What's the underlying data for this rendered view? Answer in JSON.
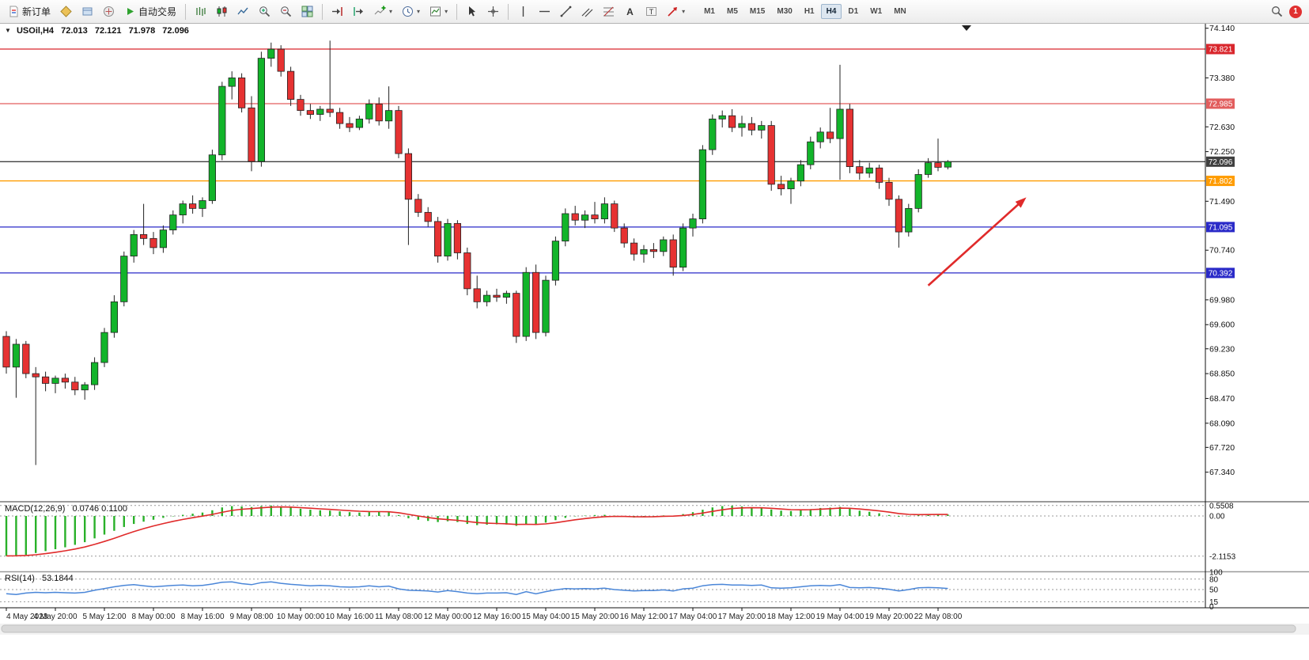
{
  "toolbar": {
    "new_order_label": "新订单",
    "auto_trading_label": "自动交易",
    "timeframes": [
      "M1",
      "M5",
      "M15",
      "M30",
      "H1",
      "H4",
      "D1",
      "W1",
      "MN"
    ],
    "active_timeframe": "H4",
    "notification_count": "1"
  },
  "chart": {
    "symbol_period": "USOil,H4",
    "open": "72.013",
    "high": "72.121",
    "low": "71.978",
    "close": "72.096"
  },
  "indicators": {
    "macd": {
      "name": "MACD(12,26,9)",
      "values": "0.0746 0.1100"
    },
    "rsi": {
      "name": "RSI(14)",
      "value": "53.1844"
    }
  },
  "chart_data": [
    {
      "type": "candlestick",
      "symbol": "USOil",
      "timeframe": "H4",
      "last_ohlc": {
        "open": 72.013,
        "high": 72.121,
        "low": 71.978,
        "close": 72.096
      },
      "ylim": [
        67.34,
        74.14
      ],
      "price_ticks": [
        "74.140",
        "73.380",
        "72.630",
        "72.250",
        "71.490",
        "70.740",
        "69.980",
        "69.600",
        "69.230",
        "68.850",
        "68.470",
        "68.090",
        "67.720",
        "67.340"
      ],
      "x_labels": [
        "4 May 2023",
        "4 May 20:00",
        "5 May 12:00",
        "8 May 00:00",
        "8 May 16:00",
        "9 May 08:00",
        "10 May 00:00",
        "10 May 16:00",
        "11 May 08:00",
        "12 May 00:00",
        "12 May 16:00",
        "15 May 04:00",
        "15 May 20:00",
        "16 May 12:00",
        "17 May 04:00",
        "17 May 20:00",
        "18 May 12:00",
        "19 May 04:00",
        "19 May 20:00",
        "22 May 08:00"
      ],
      "bars_per_x_label": 5,
      "up_color": "#12b42a",
      "down_color": "#e63232",
      "candles": [
        [
          69.42,
          69.5,
          68.85,
          68.95
        ],
        [
          68.95,
          69.38,
          68.48,
          69.3
        ],
        [
          69.3,
          69.35,
          68.78,
          68.85
        ],
        [
          68.85,
          68.95,
          67.45,
          68.8
        ],
        [
          68.8,
          68.88,
          68.58,
          68.7
        ],
        [
          68.7,
          68.82,
          68.55,
          68.78
        ],
        [
          68.78,
          68.85,
          68.62,
          68.72
        ],
        [
          68.72,
          68.8,
          68.52,
          68.6
        ],
        [
          68.6,
          68.72,
          68.45,
          68.68
        ],
        [
          68.68,
          69.1,
          68.6,
          69.02
        ],
        [
          69.02,
          69.55,
          68.95,
          69.48
        ],
        [
          69.48,
          70.05,
          69.4,
          69.95
        ],
        [
          69.95,
          70.72,
          69.88,
          70.65
        ],
        [
          70.65,
          71.05,
          70.55,
          70.98
        ],
        [
          70.98,
          71.45,
          70.82,
          70.92
        ],
        [
          70.92,
          71.02,
          70.68,
          70.78
        ],
        [
          70.78,
          71.12,
          70.7,
          71.05
        ],
        [
          71.05,
          71.35,
          70.98,
          71.28
        ],
        [
          71.28,
          71.5,
          71.15,
          71.45
        ],
        [
          71.45,
          71.58,
          71.3,
          71.38
        ],
        [
          71.38,
          71.55,
          71.25,
          71.5
        ],
        [
          71.5,
          72.28,
          71.45,
          72.2
        ],
        [
          72.2,
          73.32,
          72.12,
          73.25
        ],
        [
          73.25,
          73.48,
          73.05,
          73.38
        ],
        [
          73.38,
          73.45,
          72.85,
          72.92
        ],
        [
          72.92,
          73.1,
          71.95,
          72.1
        ],
        [
          72.1,
          73.78,
          72.02,
          73.68
        ],
        [
          73.68,
          73.92,
          73.55,
          73.82
        ],
        [
          73.82,
          73.88,
          73.4,
          73.48
        ],
        [
          73.48,
          73.55,
          72.95,
          73.05
        ],
        [
          73.05,
          73.12,
          72.8,
          72.88
        ],
        [
          72.88,
          72.98,
          72.75,
          72.82
        ],
        [
          72.82,
          72.95,
          72.72,
          72.9
        ],
        [
          72.9,
          73.95,
          72.78,
          72.85
        ],
        [
          72.85,
          72.92,
          72.6,
          72.68
        ],
        [
          72.68,
          72.78,
          72.55,
          72.62
        ],
        [
          72.62,
          72.8,
          72.58,
          72.75
        ],
        [
          72.75,
          73.05,
          72.68,
          72.98
        ],
        [
          72.98,
          73.08,
          72.65,
          72.72
        ],
        [
          72.72,
          73.25,
          72.6,
          72.88
        ],
        [
          72.88,
          72.95,
          72.15,
          72.22
        ],
        [
          72.22,
          72.3,
          70.82,
          71.52
        ],
        [
          71.52,
          71.6,
          71.25,
          71.32
        ],
        [
          71.32,
          71.4,
          71.1,
          71.18
        ],
        [
          71.18,
          71.25,
          70.55,
          70.65
        ],
        [
          70.65,
          71.22,
          70.58,
          71.15
        ],
        [
          71.15,
          71.2,
          70.6,
          70.7
        ],
        [
          70.7,
          70.78,
          70.05,
          70.15
        ],
        [
          70.15,
          70.35,
          69.85,
          69.95
        ],
        [
          69.95,
          70.12,
          69.88,
          70.05
        ],
        [
          70.05,
          70.15,
          69.95,
          70.02
        ],
        [
          70.02,
          70.12,
          69.92,
          70.08
        ],
        [
          70.08,
          70.12,
          69.32,
          69.42
        ],
        [
          69.42,
          70.48,
          69.35,
          70.4
        ],
        [
          70.4,
          70.52,
          69.38,
          69.48
        ],
        [
          69.48,
          70.35,
          69.42,
          70.28
        ],
        [
          70.28,
          70.95,
          70.2,
          70.88
        ],
        [
          70.88,
          71.38,
          70.8,
          71.3
        ],
        [
          71.3,
          71.42,
          71.12,
          71.2
        ],
        [
          71.2,
          71.35,
          71.08,
          71.28
        ],
        [
          71.28,
          71.48,
          71.15,
          71.22
        ],
        [
          71.22,
          71.55,
          71.15,
          71.45
        ],
        [
          71.45,
          71.5,
          71.02,
          71.08
        ],
        [
          71.08,
          71.15,
          70.78,
          70.85
        ],
        [
          70.85,
          70.92,
          70.58,
          70.68
        ],
        [
          70.68,
          70.82,
          70.55,
          70.75
        ],
        [
          70.75,
          70.85,
          70.62,
          70.72
        ],
        [
          70.72,
          70.95,
          70.65,
          70.9
        ],
        [
          70.9,
          70.98,
          70.35,
          70.48
        ],
        [
          70.48,
          71.15,
          70.42,
          71.08
        ],
        [
          71.08,
          71.3,
          70.95,
          71.22
        ],
        [
          71.22,
          72.35,
          71.15,
          72.28
        ],
        [
          72.28,
          72.82,
          72.2,
          72.75
        ],
        [
          72.75,
          72.88,
          72.62,
          72.8
        ],
        [
          72.8,
          72.9,
          72.55,
          72.62
        ],
        [
          72.62,
          72.8,
          72.48,
          72.68
        ],
        [
          72.68,
          72.78,
          72.5,
          72.58
        ],
        [
          72.58,
          72.72,
          72.45,
          72.65
        ],
        [
          72.65,
          72.72,
          71.65,
          71.75
        ],
        [
          71.75,
          71.88,
          71.58,
          71.68
        ],
        [
          71.68,
          71.85,
          71.45,
          71.8
        ],
        [
          71.8,
          72.12,
          71.72,
          72.05
        ],
        [
          72.05,
          72.48,
          71.98,
          72.4
        ],
        [
          72.4,
          72.62,
          72.3,
          72.55
        ],
        [
          72.55,
          72.92,
          72.38,
          72.45
        ],
        [
          72.45,
          73.58,
          71.82,
          72.9
        ],
        [
          72.9,
          72.98,
          71.92,
          72.02
        ],
        [
          72.02,
          72.12,
          71.82,
          71.92
        ],
        [
          71.92,
          72.08,
          71.85,
          72.0
        ],
        [
          72.0,
          72.05,
          71.68,
          71.78
        ],
        [
          71.78,
          71.85,
          71.42,
          71.52
        ],
        [
          71.52,
          71.58,
          70.78,
          71.02
        ],
        [
          71.02,
          71.45,
          70.95,
          71.38
        ],
        [
          71.38,
          71.98,
          71.32,
          71.9
        ],
        [
          71.9,
          72.15,
          71.85,
          72.08
        ],
        [
          72.08,
          72.45,
          71.95,
          72.01
        ],
        [
          72.013,
          72.121,
          71.978,
          72.096
        ]
      ],
      "levels": [
        {
          "price": 73.821,
          "label": "73.821",
          "color": "#d9262c"
        },
        {
          "price": 72.985,
          "label": "72.985",
          "color": "#e25d5d"
        },
        {
          "price": 72.096,
          "label": "72.096",
          "color": "#404040"
        },
        {
          "price": 71.802,
          "label": "71.802",
          "color": "#ff9c00"
        },
        {
          "price": 71.095,
          "label": "71.095",
          "color": "#2a2ac8"
        },
        {
          "price": 70.392,
          "label": "70.392",
          "color": "#2a2ac8"
        }
      ],
      "annotations": [
        {
          "type": "arrow",
          "color": "#e02a2a",
          "from": {
            "bar": 94,
            "price": 70.2
          },
          "to": {
            "bar": 104,
            "price": 71.55
          },
          "note": "upward trend arrow"
        }
      ]
    },
    {
      "type": "bar",
      "name": "MACD(12,26,9)",
      "current_values": {
        "macd": 0.0746,
        "signal": 0.11
      },
      "ylim": [
        -2.1153,
        0.5508
      ],
      "axis_ticks": [
        "0.5508",
        "0.00",
        "-2.1153"
      ],
      "colors": {
        "histogram": "#29b129",
        "signal": "#e02a2a"
      },
      "signal_line": "smoothed (EMA) of histogram, drawn in red",
      "histogram": [
        -2.1,
        -2.08,
        -2.05,
        -1.95,
        -1.85,
        -1.75,
        -1.65,
        -1.52,
        -1.38,
        -1.18,
        -0.98,
        -0.78,
        -0.58,
        -0.42,
        -0.3,
        -0.2,
        -0.1,
        -0.02,
        0.06,
        0.12,
        0.18,
        0.3,
        0.45,
        0.52,
        0.5,
        0.47,
        0.52,
        0.55,
        0.5,
        0.44,
        0.38,
        0.33,
        0.3,
        0.28,
        0.24,
        0.2,
        0.18,
        0.2,
        0.22,
        0.2,
        0.05,
        -0.12,
        -0.2,
        -0.26,
        -0.32,
        -0.28,
        -0.32,
        -0.42,
        -0.48,
        -0.46,
        -0.44,
        -0.45,
        -0.52,
        -0.42,
        -0.46,
        -0.35,
        -0.22,
        -0.1,
        -0.02,
        0.02,
        0.05,
        0.06,
        0.02,
        -0.04,
        -0.08,
        -0.06,
        -0.02,
        0.03,
        0.02,
        0.1,
        0.2,
        0.33,
        0.45,
        0.52,
        0.54,
        0.5,
        0.46,
        0.42,
        0.34,
        0.28,
        0.26,
        0.3,
        0.36,
        0.42,
        0.44,
        0.48,
        0.38,
        0.28,
        0.22,
        0.14,
        0.05,
        -0.04,
        -0.02,
        0.04,
        0.08,
        0.09,
        0.0746
      ]
    },
    {
      "type": "line",
      "name": "RSI(14)",
      "current_value": 53.1844,
      "ylim": [
        0,
        100
      ],
      "levels": [
        80,
        50,
        15
      ],
      "axis_ticks": [
        "100",
        "80",
        "50",
        "15",
        "0"
      ],
      "color": "#4a86d8",
      "values": [
        38,
        36,
        40,
        42,
        41,
        42,
        41,
        40,
        42,
        48,
        53,
        58,
        62,
        64,
        61,
        58,
        60,
        62,
        63,
        61,
        62,
        66,
        71,
        72,
        67,
        64,
        70,
        72,
        68,
        65,
        63,
        61,
        62,
        61,
        58,
        57,
        58,
        61,
        58,
        60,
        52,
        48,
        47,
        46,
        43,
        47,
        44,
        40,
        38,
        40,
        40,
        41,
        36,
        44,
        38,
        44,
        49,
        53,
        52,
        53,
        52,
        54,
        50,
        48,
        46,
        47,
        47,
        49,
        46,
        52,
        54,
        61,
        64,
        65,
        63,
        63,
        62,
        63,
        55,
        54,
        55,
        58,
        61,
        62,
        61,
        64,
        56,
        55,
        56,
        54,
        51,
        46,
        50,
        55,
        56,
        55,
        53.18
      ]
    }
  ]
}
